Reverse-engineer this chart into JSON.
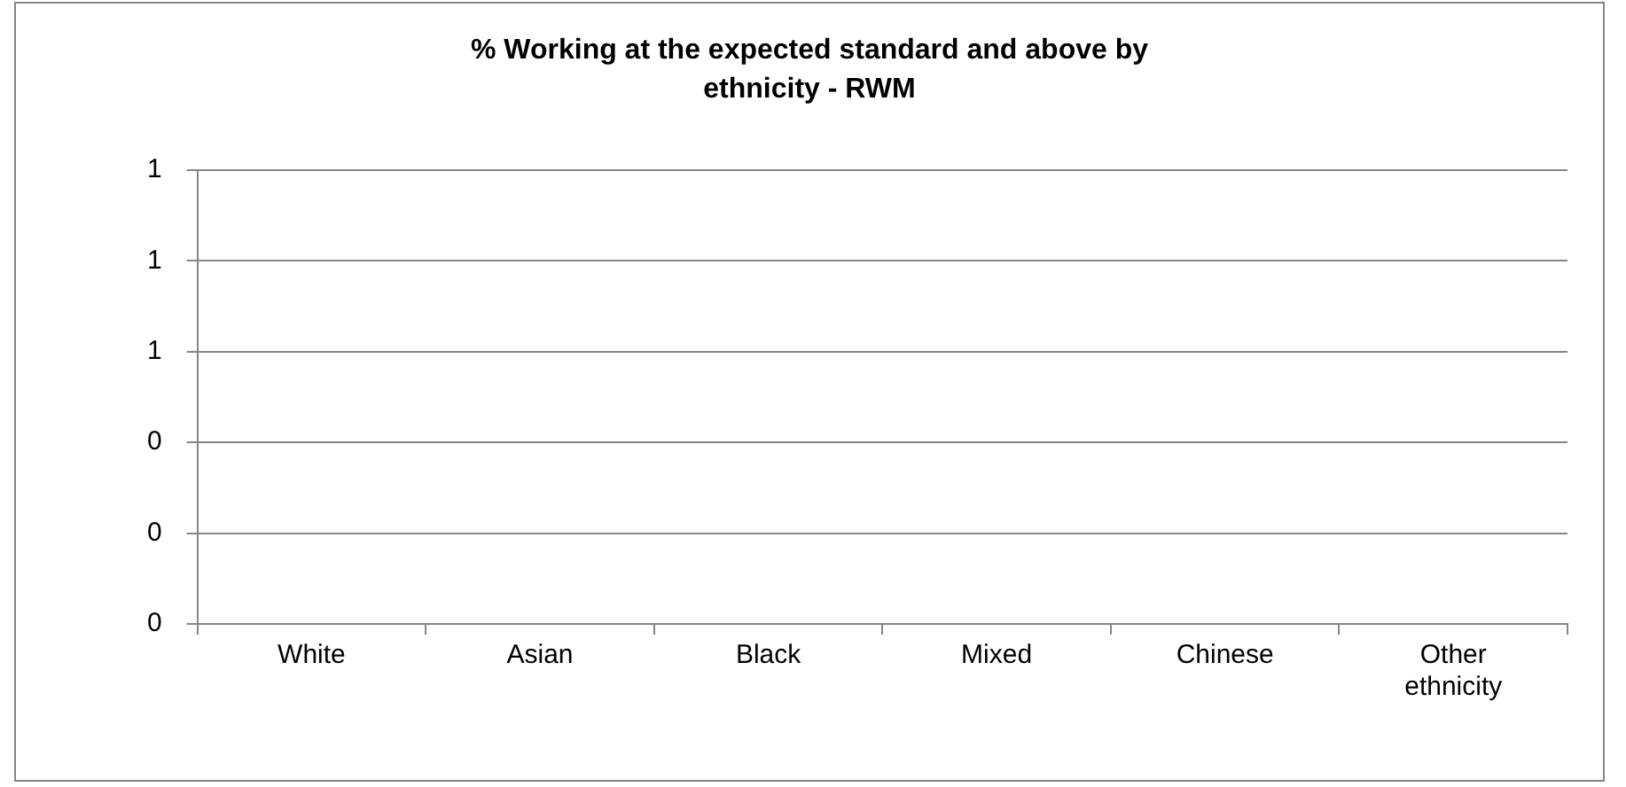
{
  "chart_data": {
    "type": "bar",
    "title": "% Working at the expected standard and above by ethnicity - RWM",
    "categories": [
      "White",
      "Asian",
      "Black",
      "Mixed",
      "Chinese",
      "Other ethnicity"
    ],
    "values": [
      null,
      null,
      null,
      null,
      null,
      null
    ],
    "ylim": [
      0,
      1
    ],
    "yticks": [
      {
        "value": 0,
        "label": "0"
      },
      {
        "value": 0.2,
        "label": "0"
      },
      {
        "value": 0.4,
        "label": "0"
      },
      {
        "value": 0.6,
        "label": "1"
      },
      {
        "value": 0.8,
        "label": "1"
      },
      {
        "value": 1,
        "label": "1"
      }
    ],
    "grid": "y",
    "legend": false
  }
}
